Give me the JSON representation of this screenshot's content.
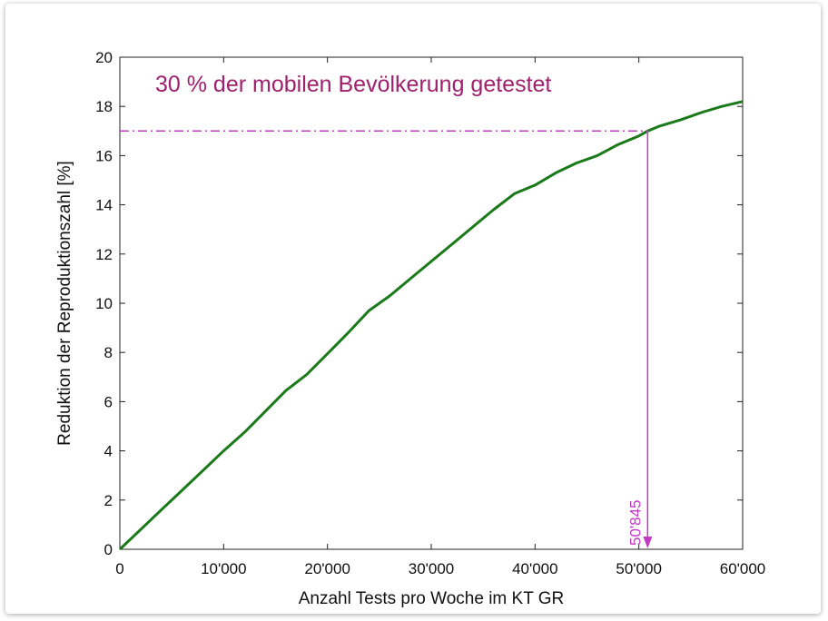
{
  "chart_data": {
    "type": "line",
    "xlabel": "Anzahl Tests pro Woche im KT GR",
    "ylabel": "Reduktion der Reproduktionszahl [%]",
    "xlim": [
      0,
      60000
    ],
    "ylim": [
      0,
      20
    ],
    "x_ticks": [
      0,
      10000,
      20000,
      30000,
      40000,
      50000,
      60000
    ],
    "x_tick_labels": [
      "0",
      "10'000",
      "20'000",
      "30'000",
      "40'000",
      "50'000",
      "60'000"
    ],
    "y_ticks": [
      0,
      2,
      4,
      6,
      8,
      10,
      12,
      14,
      16,
      18,
      20
    ],
    "y_tick_labels": [
      "0",
      "2",
      "4",
      "6",
      "8",
      "10",
      "12",
      "14",
      "16",
      "18",
      "20"
    ],
    "grid": false,
    "series": [
      {
        "color": "#1a7a1a",
        "x": [
          0,
          2000,
          4000,
          6000,
          8000,
          10000,
          12000,
          14000,
          16000,
          18000,
          20000,
          22000,
          24000,
          26000,
          28000,
          30000,
          32000,
          34000,
          36000,
          38000,
          40000,
          42000,
          44000,
          46000,
          48000,
          50000,
          50845,
          52000,
          54000,
          56000,
          58000,
          60000
        ],
        "y": [
          0,
          0.8,
          1.6,
          2.4,
          3.2,
          4.0,
          4.75,
          5.6,
          6.45,
          7.1,
          7.95,
          8.8,
          9.7,
          10.3,
          11.0,
          11.7,
          12.4,
          13.1,
          13.8,
          14.45,
          14.8,
          15.3,
          15.7,
          16.0,
          16.45,
          16.8,
          17.0,
          17.2,
          17.45,
          17.75,
          18.0,
          18.2
        ]
      }
    ],
    "annotation": {
      "text": "30 % der mobilen Bevölkerung getestet",
      "color": "#a0206e"
    },
    "threshold": {
      "y": 17,
      "x": 50845,
      "x_label": "50'845",
      "color": "#c23bc4"
    }
  }
}
